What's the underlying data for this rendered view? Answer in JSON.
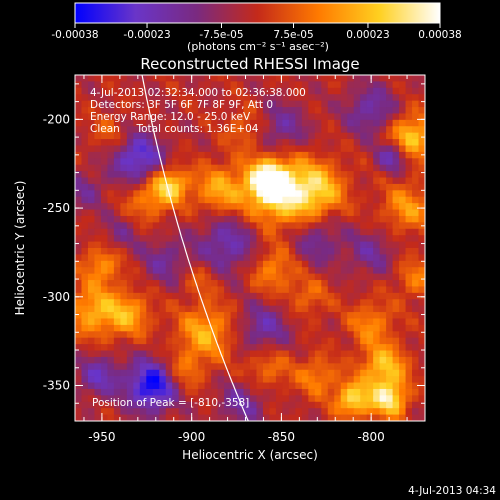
{
  "colorbar": {
    "tick_labels": [
      "-0.00038",
      "-0.00023",
      "-7.5e-05",
      "7.5e-05",
      "0.00023",
      "0.00038"
    ],
    "tick_values": [
      -0.00038,
      -0.00023,
      -7.5e-05,
      7.5e-05,
      0.00023,
      0.00038
    ],
    "range": [
      -0.00038,
      0.00038
    ],
    "units_label": "(photons cm⁻² s⁻¹ asec⁻²)"
  },
  "chart_data": {
    "type": "heatmap",
    "title": "Reconstructed RHESSI Image",
    "xlabel": "Heliocentric X (arcsec)",
    "ylabel": "Heliocentric Y (arcsec)",
    "xlim": [
      -965,
      -770
    ],
    "ylim": [
      -370,
      -175
    ],
    "x_ticks": [
      -950,
      -900,
      -850,
      -800
    ],
    "y_ticks": [
      -200,
      -250,
      -300,
      -350
    ],
    "x_tick_labels": [
      "-950",
      "-900",
      "-850",
      "-800"
    ],
    "y_tick_labels": [
      "-200",
      "-250",
      "-300",
      "-350"
    ],
    "colormap_stops": [
      "#0000ff",
      "#6a35c8",
      "#7a2a80",
      "#c42a1a",
      "#ff7a00",
      "#ffd020",
      "#ffffff"
    ],
    "peak": [
      -810,
      -358
    ],
    "blobs": [
      {
        "x": -852,
        "y": -241,
        "v": 0.0003,
        "r": 14
      },
      {
        "x": -857,
        "y": -235,
        "v": 0.00036,
        "r": 7
      },
      {
        "x": -830,
        "y": -240,
        "v": 0.00024,
        "r": 11
      },
      {
        "x": -885,
        "y": -240,
        "v": 0.0002,
        "r": 10
      },
      {
        "x": -912,
        "y": -237,
        "v": 0.00028,
        "r": 7
      },
      {
        "x": -925,
        "y": -245,
        "v": 0.00016,
        "r": 9
      },
      {
        "x": -778,
        "y": -210,
        "v": 0.00028,
        "r": 9
      },
      {
        "x": -780,
        "y": -250,
        "v": 0.00018,
        "r": 10
      },
      {
        "x": -855,
        "y": -285,
        "v": 0.00017,
        "r": 9
      },
      {
        "x": -835,
        "y": -300,
        "v": 0.00012,
        "r": 8
      },
      {
        "x": -950,
        "y": -282,
        "v": 0.00018,
        "r": 8
      },
      {
        "x": -955,
        "y": -308,
        "v": 0.00022,
        "r": 10
      },
      {
        "x": -935,
        "y": -310,
        "v": 0.0002,
        "r": 9
      },
      {
        "x": -892,
        "y": -320,
        "v": 0.00022,
        "r": 11
      },
      {
        "x": -905,
        "y": -342,
        "v": 0.00015,
        "r": 8
      },
      {
        "x": -800,
        "y": -315,
        "v": 0.00016,
        "r": 9
      },
      {
        "x": -793,
        "y": -340,
        "v": 0.00026,
        "r": 9
      },
      {
        "x": -810,
        "y": -358,
        "v": 0.0003,
        "r": 7
      },
      {
        "x": -790,
        "y": -358,
        "v": 0.00032,
        "r": 7
      },
      {
        "x": -830,
        "y": -345,
        "v": 0.00016,
        "r": 8
      },
      {
        "x": -858,
        "y": -340,
        "v": 0.00014,
        "r": 9
      },
      {
        "x": -775,
        "y": -290,
        "v": 0.00014,
        "r": 8
      },
      {
        "x": -870,
        "y": -205,
        "v": 0.00012,
        "r": 8
      },
      {
        "x": -945,
        "y": -208,
        "v": 0.0001,
        "r": 8
      },
      {
        "x": -895,
        "y": -290,
        "v": 0.0001,
        "r": 7
      },
      {
        "x": -930,
        "y": -222,
        "v": -0.00028,
        "r": 10
      },
      {
        "x": -922,
        "y": -350,
        "v": -0.00036,
        "r": 10
      },
      {
        "x": -952,
        "y": -345,
        "v": -0.0002,
        "r": 8
      },
      {
        "x": -788,
        "y": -221,
        "v": -0.00024,
        "r": 6
      },
      {
        "x": -800,
        "y": -195,
        "v": -0.00018,
        "r": 10
      },
      {
        "x": -850,
        "y": -205,
        "v": -0.00016,
        "r": 10
      },
      {
        "x": -880,
        "y": -270,
        "v": -0.0002,
        "r": 12
      },
      {
        "x": -830,
        "y": -268,
        "v": -0.00015,
        "r": 10
      },
      {
        "x": -860,
        "y": -318,
        "v": -0.00018,
        "r": 10
      },
      {
        "x": -915,
        "y": -280,
        "v": -0.00014,
        "r": 9
      },
      {
        "x": -800,
        "y": -275,
        "v": -0.00014,
        "r": 9
      },
      {
        "x": -872,
        "y": -360,
        "v": -0.00016,
        "r": 9
      },
      {
        "x": -940,
        "y": -265,
        "v": -0.0001,
        "r": 8
      },
      {
        "x": -960,
        "y": -240,
        "v": -0.00012,
        "r": 8
      }
    ]
  },
  "annotations": {
    "time_range": "4-Jul-2013 02:32:34.000 to 02:36:38.000",
    "detectors": "Detectors: 3F 5F 6F 7F 8F 9F, Att 0",
    "energy": "Energy Range: 12.0 - 25.0 keV",
    "clean": "Clean     Total counts: 1.36E+04",
    "peak_label": "Position of Peak = [-810,-358]"
  },
  "footer": {
    "date": "4-Jul-2013 04:34"
  }
}
